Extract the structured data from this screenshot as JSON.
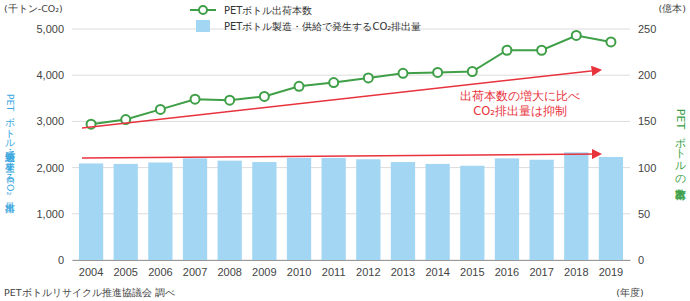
{
  "chart_data": {
    "type": "bar",
    "categories": [
      "2004",
      "2005",
      "2006",
      "2007",
      "2008",
      "2009",
      "2010",
      "2011",
      "2012",
      "2013",
      "2014",
      "2015",
      "2016",
      "2017",
      "2018",
      "2019"
    ],
    "series": [
      {
        "name": "PETボトル出荷本数",
        "type": "line",
        "axis": "y2",
        "color": "#3f9f47",
        "marker": "circle",
        "values": [
          147,
          152,
          163,
          174,
          173,
          177,
          188,
          192,
          197,
          202,
          203,
          204,
          227,
          227,
          243,
          236
        ]
      },
      {
        "name": "PETボトル製造・供給で発生するCO₂排出量",
        "type": "bar",
        "color": "#a3d6f3",
        "values": [
          2090,
          2080,
          2110,
          2200,
          2150,
          2120,
          2210,
          2210,
          2180,
          2120,
          2080,
          2040,
          2200,
          2170,
          2330,
          2230
        ]
      }
    ],
    "ylim": [
      0,
      5000
    ],
    "yticks": [
      0,
      {
        "value": 1000,
        "label": "1,000"
      },
      {
        "value": 2000,
        "label": "2,000"
      },
      {
        "value": 3000,
        "label": "3,000"
      },
      {
        "value": 4000,
        "label": "4,000"
      },
      {
        "value": 5000,
        "label": "5,000"
      }
    ],
    "y2lim": [
      0,
      250
    ],
    "y2ticks": [
      0,
      50,
      100,
      150,
      200,
      250
    ],
    "y_label": "PETボトル製造・供給で発生するCO₂排出量",
    "y2_label": "PETボトルの出荷本数",
    "y_unit": "(千トン-CO₂)",
    "y2_unit": "(億本)",
    "x_unit": "(年度)",
    "annotations": [
      "出荷本数の増大に比べ",
      "CO₂排出量は抑制"
    ],
    "source": "PETボトルリサイクル推進協議会 調べ",
    "grid": true,
    "legend": "top-left"
  }
}
